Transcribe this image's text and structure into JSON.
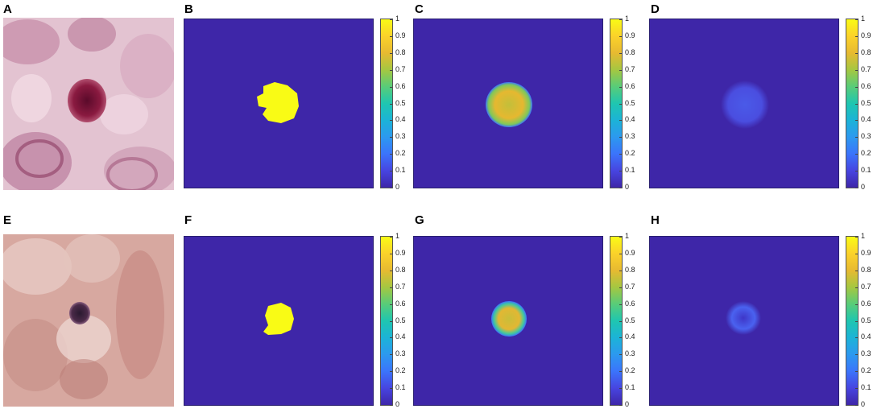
{
  "panels": {
    "A": "A",
    "B": "B",
    "C": "C",
    "D": "D",
    "E": "E",
    "F": "F",
    "G": "G",
    "H": "H"
  },
  "colorbar_ticks": [
    "0",
    "0.1",
    "0.2",
    "0.3",
    "0.4",
    "0.5",
    "0.6",
    "0.7",
    "0.8",
    "0.9",
    "1"
  ],
  "colormap": "parula"
}
